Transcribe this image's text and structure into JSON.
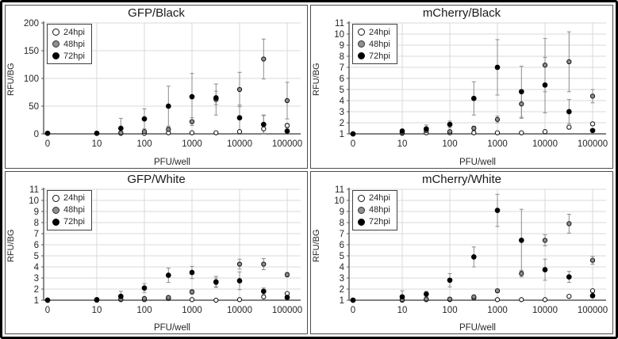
{
  "colors": {
    "grid": "#d9d9d9",
    "axis": "#595959",
    "error_bar": "#8c8c8c",
    "text": "#262626",
    "marker_open_fill": "#ffffff",
    "marker_gray_fill": "#8f8f8f",
    "marker_filled_fill": "#000000",
    "marker_stroke": "#1a1a1a"
  },
  "chart_data": [
    {
      "type": "scatter",
      "title": "GFP/Black",
      "xlabel": "PFU/well",
      "ylabel": "RFU/BG",
      "x_scale": "log-with-zero",
      "x": [
        0,
        10,
        32,
        100,
        320,
        1000,
        3200,
        10000,
        32000,
        100000
      ],
      "x_tick_values": [
        0,
        10,
        100,
        1000,
        10000,
        100000
      ],
      "x_tick_labels": [
        "0",
        "10",
        "100",
        "1000",
        "10000",
        "100000"
      ],
      "ylim": [
        0,
        200
      ],
      "yticks": [
        0,
        50,
        100,
        150,
        200
      ],
      "legend_position": "top-left",
      "series": [
        {
          "name": "24hpi",
          "marker": "open",
          "values": [
            1,
            1,
            1,
            1,
            2,
            2,
            2,
            4,
            9,
            15
          ],
          "err": [
            0,
            0,
            0,
            1,
            1,
            1,
            1,
            2,
            25,
            4
          ]
        },
        {
          "name": "48hpi",
          "marker": "gray",
          "values": [
            1,
            1,
            2,
            4,
            8,
            22,
            62,
            80,
            135,
            60
          ],
          "err": [
            0,
            0,
            1,
            2,
            4,
            7,
            28,
            31,
            36,
            33
          ]
        },
        {
          "name": "72hpi",
          "marker": "filled",
          "values": [
            1,
            1,
            10,
            27,
            50,
            67,
            65,
            29,
            17,
            5
          ],
          "err": [
            0,
            0,
            18,
            18,
            36,
            42,
            12,
            23,
            16,
            2
          ]
        }
      ]
    },
    {
      "type": "scatter",
      "title": "mCherry/Black",
      "xlabel": "PFU/well",
      "ylabel": "RFU/BG",
      "x_scale": "log-with-zero",
      "x": [
        0,
        10,
        32,
        100,
        320,
        1000,
        3200,
        10000,
        32000,
        100000
      ],
      "x_tick_values": [
        0,
        10,
        100,
        1000,
        10000,
        100000
      ],
      "x_tick_labels": [
        "0",
        "10",
        "100",
        "1000",
        "10000",
        "100000"
      ],
      "ylim": [
        1,
        11
      ],
      "yticks": [
        1,
        2,
        3,
        4,
        5,
        6,
        7,
        8,
        9,
        10,
        11
      ],
      "legend_position": "top-left",
      "series": [
        {
          "name": "24hpi",
          "marker": "open",
          "values": [
            1,
            1.05,
            1.1,
            1.1,
            1.1,
            1.1,
            1.1,
            1.2,
            1.6,
            1.9
          ],
          "err": [
            0,
            0,
            0.05,
            0.05,
            0.05,
            0.05,
            0.05,
            0.1,
            0.15,
            0.15
          ]
        },
        {
          "name": "48hpi",
          "marker": "gray",
          "values": [
            1,
            1.1,
            1.3,
            1.2,
            1.5,
            2.3,
            3.7,
            7.2,
            7.5,
            4.4
          ],
          "err": [
            0,
            0.05,
            0.2,
            0.1,
            0.2,
            0.3,
            1.3,
            2.4,
            2.7,
            0.6
          ]
        },
        {
          "name": "72hpi",
          "marker": "filled",
          "values": [
            1,
            1.25,
            1.45,
            1.85,
            4.2,
            7.0,
            4.8,
            5.4,
            3.0,
            1.3
          ],
          "err": [
            0,
            0.1,
            0.35,
            0.3,
            1.5,
            2.5,
            2.3,
            2.5,
            1.1,
            0.1
          ]
        }
      ]
    },
    {
      "type": "scatter",
      "title": "GFP/White",
      "xlabel": "PFU/well",
      "ylabel": "RFU/BG",
      "x_scale": "log-with-zero",
      "x": [
        0,
        10,
        32,
        100,
        320,
        1000,
        3200,
        10000,
        32000,
        100000
      ],
      "x_tick_values": [
        0,
        10,
        100,
        1000,
        10000,
        100000
      ],
      "x_tick_labels": [
        "0",
        "10",
        "100",
        "1000",
        "10000",
        "100000"
      ],
      "ylim": [
        1,
        11
      ],
      "yticks": [
        1,
        2,
        3,
        4,
        5,
        6,
        7,
        8,
        9,
        10,
        11
      ],
      "legend_position": "top-left",
      "series": [
        {
          "name": "24hpi",
          "marker": "open",
          "values": [
            1,
            1,
            1.05,
            1.05,
            1.15,
            1.05,
            1,
            1.05,
            1.3,
            1.6
          ],
          "err": [
            0,
            0,
            0,
            0,
            0.05,
            0.05,
            0,
            0.05,
            0.1,
            0.1
          ]
        },
        {
          "name": "48hpi",
          "marker": "gray",
          "values": [
            1,
            1,
            1.1,
            1.15,
            1.25,
            1.75,
            2.6,
            4.25,
            4.25,
            3.3
          ],
          "err": [
            0,
            0,
            0.05,
            0.05,
            0.1,
            0.2,
            0.4,
            0.45,
            0.5,
            0.2
          ]
        },
        {
          "name": "72hpi",
          "marker": "filled",
          "values": [
            1,
            1.05,
            1.35,
            2.1,
            3.25,
            3.5,
            2.65,
            2.75,
            1.8,
            1.25
          ],
          "err": [
            0,
            0.05,
            0.45,
            0.4,
            0.65,
            0.55,
            0.5,
            0.8,
            0.3,
            0.1
          ]
        }
      ]
    },
    {
      "type": "scatter",
      "title": "mCherry/White",
      "xlabel": "PFU/well",
      "ylabel": "RFU/BG",
      "x_scale": "log-with-zero",
      "x": [
        0,
        10,
        32,
        100,
        320,
        1000,
        3200,
        10000,
        32000,
        100000
      ],
      "x_tick_values": [
        0,
        10,
        100,
        1000,
        10000,
        100000
      ],
      "x_tick_labels": [
        "0",
        "10",
        "100",
        "1000",
        "10000",
        "100000"
      ],
      "ylim": [
        1,
        11
      ],
      "yticks": [
        1,
        2,
        3,
        4,
        5,
        6,
        7,
        8,
        9,
        10,
        11
      ],
      "legend_position": "top-left",
      "series": [
        {
          "name": "24hpi",
          "marker": "open",
          "values": [
            1,
            1,
            1.05,
            1.05,
            1.2,
            1.05,
            1.05,
            1.05,
            1.35,
            1.85
          ],
          "err": [
            0,
            0,
            0,
            0,
            0.05,
            0.05,
            0,
            0,
            0.1,
            0.1
          ]
        },
        {
          "name": "48hpi",
          "marker": "gray",
          "values": [
            1,
            1.05,
            1.1,
            1.1,
            1.3,
            1.85,
            3.4,
            6.4,
            7.9,
            4.6
          ],
          "err": [
            0,
            0.05,
            0.05,
            0.05,
            0.1,
            0.15,
            0.3,
            0.5,
            0.85,
            0.35
          ]
        },
        {
          "name": "72hpi",
          "marker": "filled",
          "values": [
            1,
            1.3,
            1.55,
            2.8,
            4.9,
            9.1,
            6.4,
            3.75,
            3.1,
            1.4
          ],
          "err": [
            0,
            0.55,
            0.25,
            0.6,
            0.9,
            1.45,
            2.8,
            0.95,
            0.5,
            0.15
          ]
        }
      ]
    }
  ]
}
